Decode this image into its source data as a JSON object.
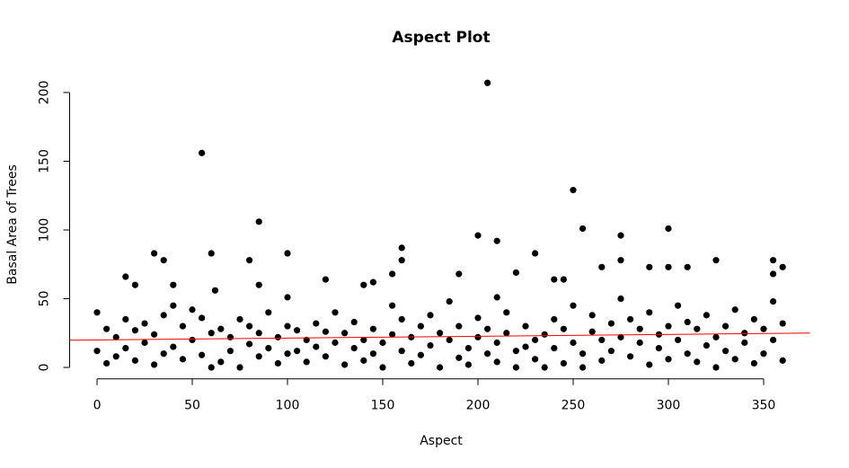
{
  "chart_data": {
    "type": "scatter",
    "title": "Aspect Plot",
    "x_label": "Aspect",
    "y_label": "Basal Area of Trees",
    "xlim": [
      -14.4,
      374.4
    ],
    "ylim": [
      -8.28,
      215.28
    ],
    "xticks": [
      0,
      50,
      100,
      150,
      200,
      250,
      300,
      350
    ],
    "yticks": [
      0,
      50,
      100,
      150,
      200
    ],
    "color": "#000000",
    "x": [
      0,
      0,
      5,
      5,
      10,
      10,
      15,
      15,
      20,
      20,
      25,
      25,
      30,
      30,
      35,
      35,
      40,
      40,
      45,
      45,
      50,
      50,
      55,
      55,
      60,
      60,
      65,
      65,
      70,
      70,
      75,
      75,
      80,
      80,
      85,
      85,
      90,
      90,
      95,
      95,
      100,
      100,
      105,
      105,
      110,
      110,
      115,
      115,
      120,
      120,
      125,
      125,
      130,
      130,
      135,
      135,
      140,
      140,
      145,
      145,
      150,
      150,
      155,
      155,
      160,
      160,
      165,
      165,
      170,
      170,
      175,
      175,
      180,
      180,
      185,
      185,
      190,
      190,
      195,
      195,
      200,
      200,
      205,
      205,
      210,
      210,
      215,
      215,
      220,
      220,
      225,
      225,
      230,
      230,
      235,
      235,
      240,
      240,
      245,
      245,
      250,
      250,
      255,
      255,
      260,
      260,
      265,
      265,
      270,
      270,
      275,
      275,
      280,
      280,
      285,
      285,
      290,
      290,
      295,
      295,
      300,
      300,
      305,
      305,
      310,
      310,
      315,
      315,
      320,
      320,
      325,
      325,
      330,
      330,
      335,
      335,
      340,
      340,
      345,
      345,
      350,
      350,
      355,
      355,
      360,
      360,
      55,
      205,
      250,
      85,
      300,
      255,
      200,
      275,
      210,
      160,
      30,
      60,
      100,
      230,
      80,
      35,
      160,
      275,
      325,
      355,
      15,
      20,
      140,
      145,
      155,
      190,
      220,
      360,
      290,
      300,
      310,
      265,
      240,
      245,
      120,
      40,
      85,
      355,
      62,
      100,
      210
    ],
    "values": [
      40,
      12,
      3,
      28,
      22,
      8,
      14,
      35,
      5,
      27,
      18,
      32,
      2,
      24,
      10,
      38,
      45,
      15,
      30,
      6,
      20,
      42,
      36,
      9,
      0,
      25,
      28,
      4,
      22,
      12,
      0,
      35,
      17,
      30,
      25,
      8,
      40,
      14,
      3,
      22,
      30,
      10,
      12,
      27,
      20,
      4,
      32,
      15,
      8,
      26,
      18,
      40,
      2,
      25,
      14,
      33,
      5,
      20,
      10,
      28,
      0,
      18,
      24,
      45,
      12,
      35,
      3,
      22,
      30,
      9,
      16,
      38,
      0,
      25,
      20,
      48,
      7,
      30,
      14,
      2,
      22,
      36,
      10,
      28,
      4,
      18,
      25,
      40,
      0,
      12,
      15,
      30,
      20,
      6,
      0,
      24,
      14,
      35,
      3,
      28,
      18,
      45,
      0,
      10,
      26,
      38,
      5,
      20,
      32,
      12,
      22,
      50,
      8,
      35,
      18,
      28,
      2,
      40,
      24,
      14,
      30,
      6,
      20,
      45,
      10,
      33,
      28,
      4,
      16,
      38,
      0,
      22,
      30,
      12,
      6,
      42,
      25,
      18,
      3,
      35,
      28,
      10,
      20,
      48,
      5,
      32,
      156,
      207,
      129,
      106,
      101,
      101,
      96,
      96,
      92,
      87,
      83,
      83,
      83,
      83,
      78,
      78,
      78,
      78,
      78,
      78,
      66,
      60,
      60,
      62,
      68,
      68,
      69,
      73,
      73,
      73,
      73,
      73,
      64,
      64,
      64,
      60,
      60,
      68,
      56,
      51,
      51
    ],
    "trend_line": {
      "color": "#ff0000",
      "x": [
        -14.4,
        374.4
      ],
      "values": [
        19.8,
        25
      ]
    }
  }
}
